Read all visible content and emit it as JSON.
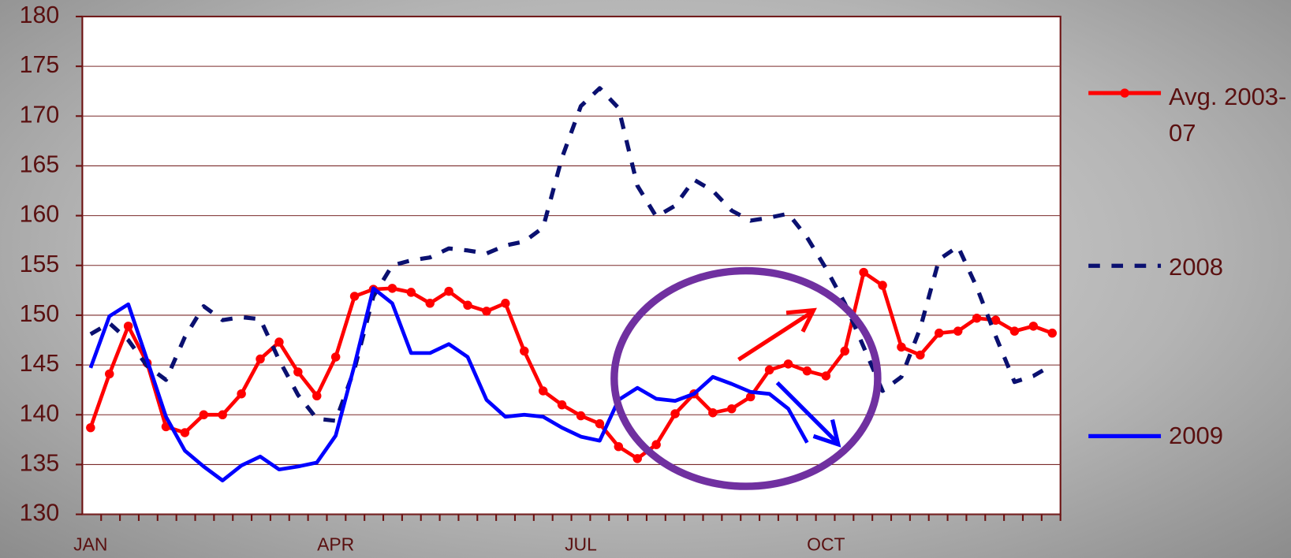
{
  "chart_data": {
    "type": "line",
    "categories": [
      "JAN",
      null,
      null,
      null,
      null,
      null,
      null,
      null,
      null,
      null,
      null,
      null,
      null,
      "APR",
      null,
      null,
      null,
      null,
      null,
      null,
      null,
      null,
      null,
      null,
      null,
      null,
      "JUL",
      null,
      null,
      null,
      null,
      null,
      null,
      null,
      null,
      null,
      null,
      null,
      null,
      "OCT",
      null,
      null,
      null,
      null,
      null,
      null,
      null,
      null,
      null,
      null,
      null,
      null
    ],
    "series": [
      {
        "name": "Avg. 2003-07",
        "color": "#ff0000",
        "markers": true,
        "values": [
          138.7,
          144.1,
          148.9,
          145.2,
          138.8,
          138.2,
          140.0,
          140.0,
          142.1,
          145.6,
          147.3,
          144.3,
          141.9,
          145.8,
          151.9,
          152.6,
          152.7,
          152.3,
          151.2,
          152.4,
          151.0,
          150.4,
          151.2,
          146.4,
          142.4,
          141.0,
          139.9,
          139.1,
          136.8,
          135.6,
          137.0,
          140.1,
          142.1,
          140.2,
          140.6,
          141.8,
          144.5,
          145.1,
          144.4,
          143.9,
          146.4,
          154.3,
          153.0,
          146.8,
          146.0,
          148.2,
          148.4,
          149.7,
          149.5,
          148.4,
          148.9,
          148.2
        ]
      },
      {
        "name": "2008",
        "color": "#0a1070",
        "dashed": true,
        "values": [
          148.1,
          149.2,
          147.5,
          144.9,
          143.5,
          147.8,
          150.9,
          149.5,
          149.8,
          149.6,
          145.5,
          142.0,
          139.6,
          139.4,
          144.6,
          151.9,
          155.0,
          155.5,
          155.8,
          156.7,
          156.5,
          156.2,
          157.0,
          157.4,
          158.8,
          165.8,
          171.0,
          172.8,
          170.8,
          163.0,
          159.9,
          161.0,
          163.6,
          162.5,
          160.5,
          159.5,
          159.8,
          160.2,
          157.8,
          154.7,
          151.2,
          146.8,
          142.4,
          143.8,
          148.7,
          155.6,
          156.9,
          152.8,
          147.9,
          143.3,
          143.9,
          145.0
        ]
      },
      {
        "name": "2009",
        "color": "#0000ff",
        "values": [
          144.7,
          149.9,
          151.1,
          145.5,
          139.8,
          136.4,
          134.8,
          133.4,
          134.9,
          135.8,
          134.5,
          134.8,
          135.2,
          137.9,
          145.0,
          152.7,
          151.2,
          146.2,
          146.2,
          147.1,
          145.8,
          141.5,
          139.8,
          140.0,
          139.8,
          138.7,
          137.8,
          137.4,
          141.5,
          142.7,
          141.6,
          141.4,
          142.1,
          143.8,
          143.1,
          142.3,
          142.1,
          140.6,
          137.2,
          null,
          null,
          null,
          null,
          null,
          null,
          null,
          null,
          null,
          null,
          null,
          null,
          null
        ]
      }
    ],
    "ylim": [
      130,
      180
    ],
    "yticks": [
      130,
      135,
      140,
      145,
      150,
      155,
      160,
      165,
      170,
      175,
      180
    ],
    "grid": true,
    "legend": "right"
  }
}
